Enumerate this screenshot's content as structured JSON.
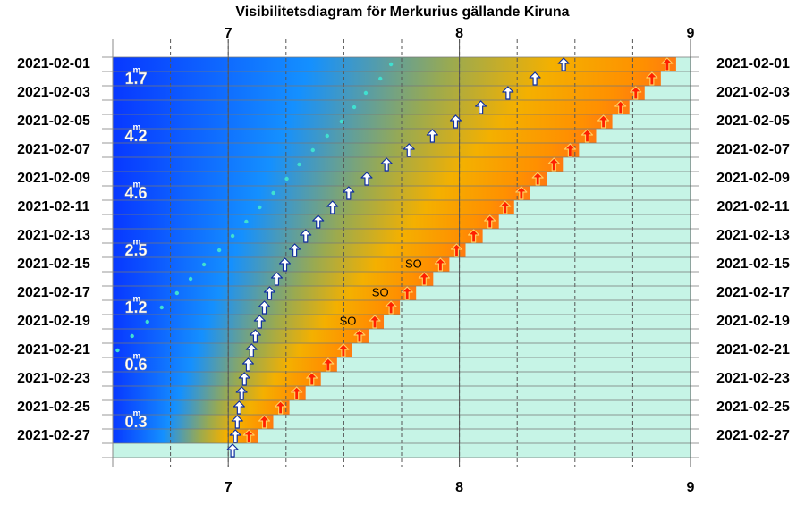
{
  "chart_data": {
    "type": "visibility",
    "title": "Visibilitetsdiagram för Merkurius gällande Kiruna",
    "xlim": [
      6.5,
      9.0
    ],
    "xticks": [
      7,
      8,
      9
    ],
    "xgrid_step": 0.25,
    "categories": [
      "2021-02-01",
      null,
      "2021-02-03",
      null,
      "2021-02-05",
      null,
      "2021-02-07",
      null,
      "2021-02-09",
      null,
      "2021-02-11",
      null,
      "2021-02-13",
      null,
      "2021-02-15",
      null,
      "2021-02-17",
      null,
      "2021-02-19",
      null,
      "2021-02-21",
      null,
      "2021-02-23",
      null,
      "2021-02-25",
      null,
      "2021-02-27",
      null
    ],
    "sunrise": {
      "color": "#ff2000",
      "values": [
        8.899,
        8.833,
        8.763,
        8.697,
        8.623,
        8.553,
        8.479,
        8.409,
        8.339,
        8.268,
        8.198,
        8.132,
        8.062,
        7.988,
        7.918,
        7.848,
        7.774,
        7.704,
        7.634,
        7.568,
        7.498,
        7.432,
        7.362,
        7.296,
        7.226,
        7.156,
        7.089,
        null
      ]
    },
    "planet_rise": {
      "color": "#ffffff",
      "values": [
        8.451,
        8.327,
        8.21,
        8.093,
        7.984,
        7.883,
        7.782,
        7.685,
        7.599,
        7.521,
        7.451,
        7.389,
        7.335,
        7.288,
        7.245,
        7.21,
        7.179,
        7.156,
        7.136,
        7.117,
        7.101,
        7.086,
        7.07,
        7.058,
        7.047,
        7.039,
        7.031,
        7.019
      ]
    },
    "dots": {
      "color": "#40e0d0",
      "values": [
        7.704,
        7.658,
        7.595,
        7.545,
        7.49,
        7.428,
        7.366,
        7.307,
        7.253,
        7.195,
        7.136,
        7.078,
        7.019,
        6.961,
        6.895,
        6.837,
        6.778,
        6.712,
        6.65,
        6.584,
        6.521,
        null,
        null,
        null,
        null,
        null,
        null,
        null
      ]
    },
    "magnitude": [
      null,
      1.7,
      null,
      null,
      null,
      4.2,
      null,
      null,
      null,
      4.6,
      null,
      null,
      null,
      2.5,
      null,
      null,
      null,
      1.2,
      null,
      null,
      null,
      0.6,
      null,
      null,
      null,
      0.3,
      null,
      null
    ],
    "magnitude_unit": "m",
    "annotations": [
      {
        "text": "SO",
        "category": 14
      },
      {
        "text": "SO",
        "category": 16
      },
      {
        "text": "SO",
        "category": 18
      }
    ]
  }
}
